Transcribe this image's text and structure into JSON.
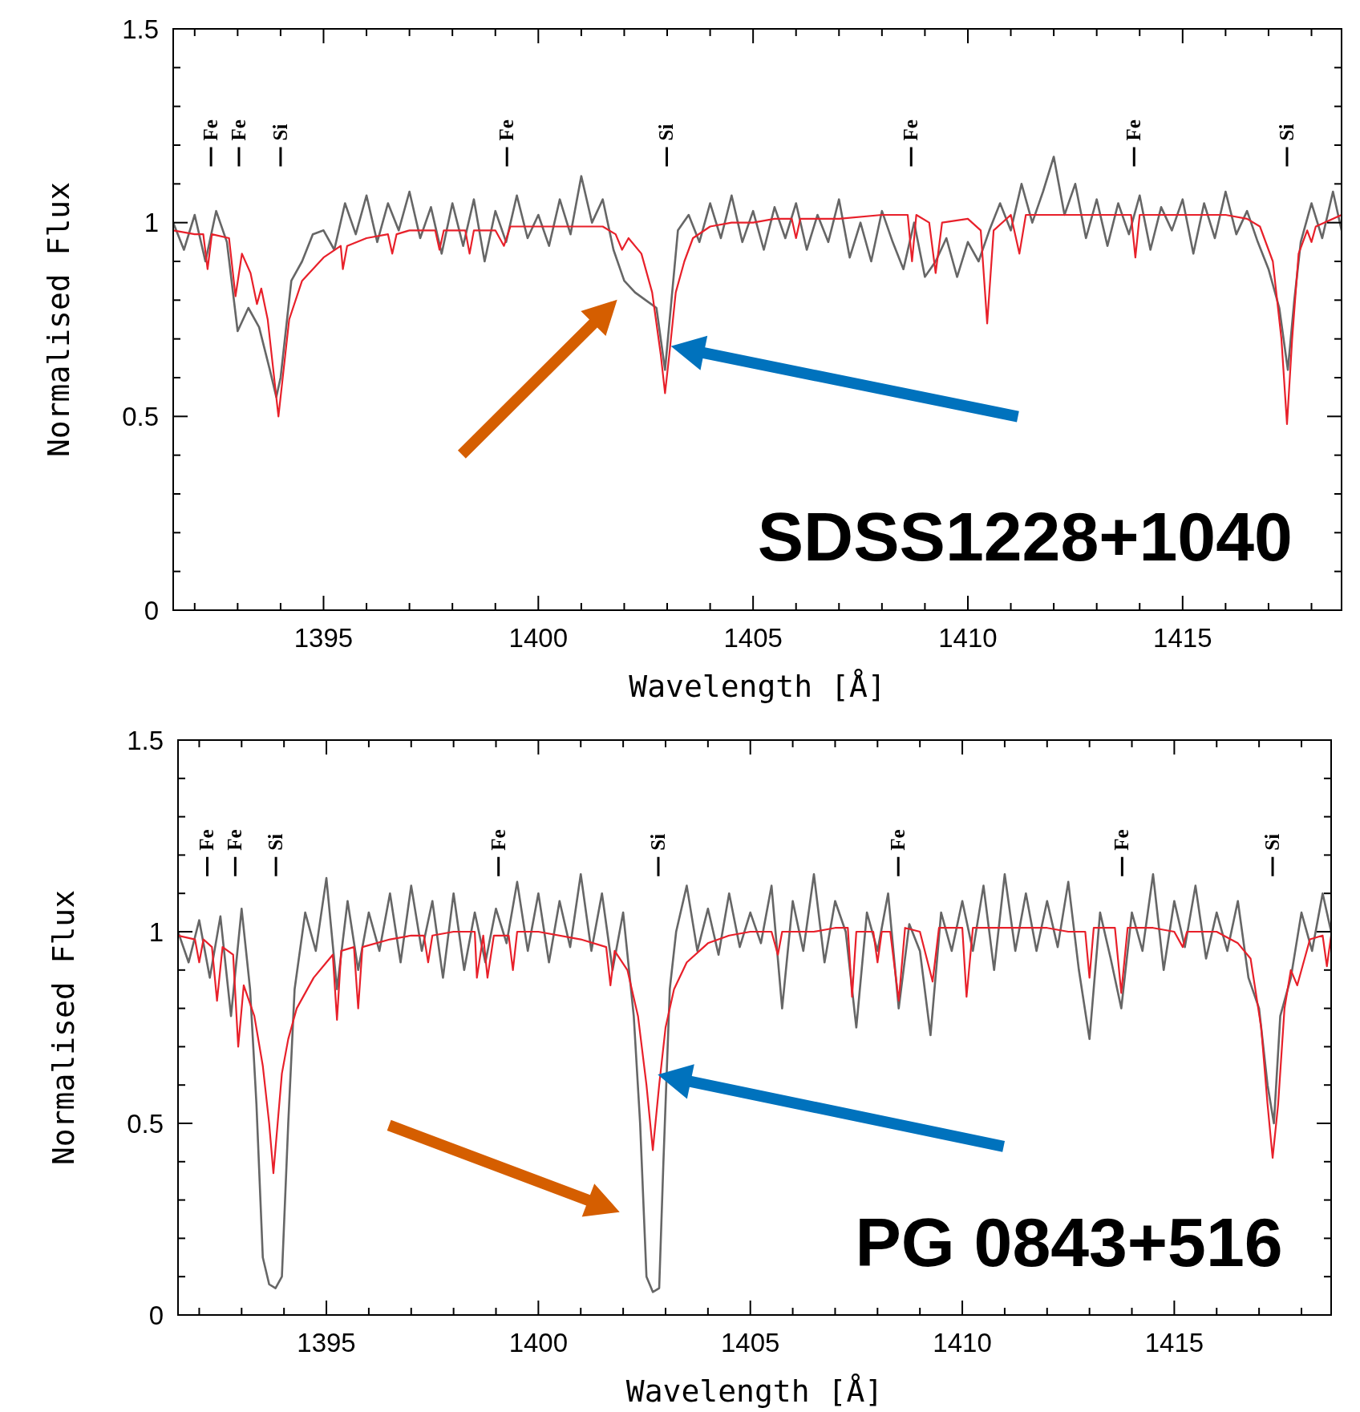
{
  "chart_data": [
    {
      "type": "line",
      "title": "SDSS1228+1040",
      "xlabel": "Wavelength [Å]",
      "ylabel": "Normalised Flux",
      "xlim": [
        1391.5,
        1418.7
      ],
      "ylim": [
        0,
        1.5
      ],
      "xticks": [
        {
          "value": 1392,
          "label": null
        },
        {
          "value": 1393,
          "label": null
        },
        {
          "value": 1394,
          "label": null
        },
        1395,
        {
          "value": 1396,
          "label": null
        },
        {
          "value": 1397,
          "label": null
        },
        {
          "value": 1398,
          "label": null
        },
        {
          "value": 1399,
          "label": null
        },
        1400,
        {
          "value": 1401,
          "label": null
        },
        {
          "value": 1402,
          "label": null
        },
        {
          "value": 1403,
          "label": null
        },
        {
          "value": 1404,
          "label": null
        },
        1405,
        {
          "value": 1406,
          "label": null
        },
        {
          "value": 1407,
          "label": null
        },
        {
          "value": 1408,
          "label": null
        },
        {
          "value": 1409,
          "label": null
        },
        1410,
        {
          "value": 1411,
          "label": null
        },
        {
          "value": 1412,
          "label": null
        },
        {
          "value": 1413,
          "label": null
        },
        {
          "value": 1414,
          "label": null
        },
        1415,
        {
          "value": 1416,
          "label": null
        },
        {
          "value": 1417,
          "label": null
        },
        {
          "value": 1418,
          "label": null
        }
      ],
      "yticks": [
        0,
        {
          "value": 0.1,
          "label": null
        },
        {
          "value": 0.2,
          "label": null
        },
        {
          "value": 0.3,
          "label": null
        },
        {
          "value": 0.4,
          "label": null
        },
        0.5,
        {
          "value": 0.6,
          "label": null
        },
        {
          "value": 0.7,
          "label": null
        },
        {
          "value": 0.8,
          "label": null
        },
        {
          "value": 0.9,
          "label": null
        },
        1,
        {
          "value": 1.1,
          "label": null
        },
        {
          "value": 1.2,
          "label": null
        },
        {
          "value": 1.3,
          "label": null
        },
        {
          "value": 1.4,
          "label": null
        },
        1.5
      ],
      "grid": false,
      "line_style": "solid",
      "marker": "none",
      "ref_lines": [
        {
          "axis": "x",
          "value": 1392.38,
          "label": "Fe"
        },
        {
          "axis": "x",
          "value": 1393.03,
          "label": "Fe"
        },
        {
          "axis": "x",
          "value": 1394.0,
          "label": "Si"
        },
        {
          "axis": "x",
          "value": 1399.27,
          "label": "Fe"
        },
        {
          "axis": "x",
          "value": 1402.99,
          "label": "Si"
        },
        {
          "axis": "x",
          "value": 1408.68,
          "label": "Fe"
        },
        {
          "axis": "x",
          "value": 1413.87,
          "label": "Fe"
        },
        {
          "axis": "x",
          "value": 1417.43,
          "label": "Si"
        }
      ],
      "series": [
        {
          "color": "#666666",
          "x": [
            1391.5,
            1391.75,
            1392,
            1392.25,
            1392.5,
            1392.75,
            1393,
            1393.25,
            1393.5,
            1393.75,
            1393.9,
            1394,
            1394.25,
            1394.5,
            1394.75,
            1395,
            1395.25,
            1395.5,
            1395.75,
            1396,
            1396.25,
            1396.5,
            1396.75,
            1397,
            1397.25,
            1397.5,
            1397.75,
            1398,
            1398.25,
            1398.5,
            1398.75,
            1399,
            1399.25,
            1399.5,
            1399.75,
            1400,
            1400.25,
            1400.5,
            1400.75,
            1401,
            1401.25,
            1401.5,
            1401.75,
            1402,
            1402.25,
            1402.5,
            1402.75,
            1402.95,
            1403.1,
            1403.25,
            1403.5,
            1403.75,
            1404,
            1404.25,
            1404.5,
            1404.75,
            1405,
            1405.25,
            1405.5,
            1405.75,
            1406,
            1406.25,
            1406.5,
            1406.75,
            1407,
            1407.25,
            1407.5,
            1407.75,
            1408,
            1408.25,
            1408.5,
            1408.75,
            1409,
            1409.25,
            1409.5,
            1409.75,
            1410,
            1410.25,
            1410.5,
            1410.75,
            1411,
            1411.25,
            1411.5,
            1411.75,
            1412,
            1412.25,
            1412.5,
            1412.75,
            1413,
            1413.25,
            1413.5,
            1413.75,
            1414,
            1414.25,
            1414.5,
            1414.75,
            1415,
            1415.25,
            1415.5,
            1415.75,
            1416,
            1416.25,
            1416.5,
            1416.75,
            1417,
            1417.25,
            1417.45,
            1417.6,
            1417.75,
            1418,
            1418.25,
            1418.5,
            1418.7
          ],
          "values": [
            1.0,
            0.93,
            1.02,
            0.9,
            1.03,
            0.95,
            0.72,
            0.78,
            0.73,
            0.62,
            0.55,
            0.6,
            0.85,
            0.9,
            0.97,
            0.98,
            0.93,
            1.05,
            0.97,
            1.07,
            0.95,
            1.05,
            0.98,
            1.08,
            0.96,
            1.04,
            0.92,
            1.05,
            0.94,
            1.06,
            0.9,
            1.03,
            0.95,
            1.07,
            0.96,
            1.02,
            0.94,
            1.06,
            0.97,
            1.12,
            1.0,
            1.06,
            0.93,
            0.85,
            0.82,
            0.8,
            0.78,
            0.62,
            0.8,
            0.98,
            1.02,
            0.95,
            1.05,
            0.96,
            1.07,
            0.95,
            1.03,
            0.93,
            1.04,
            0.96,
            1.05,
            0.93,
            1.02,
            0.95,
            1.06,
            0.91,
            1.0,
            0.9,
            1.03,
            0.95,
            0.88,
            1.0,
            0.86,
            0.9,
            0.96,
            0.86,
            0.95,
            0.9,
            0.98,
            1.05,
            0.98,
            1.1,
            1.0,
            1.08,
            1.17,
            1.02,
            1.1,
            0.96,
            1.06,
            0.94,
            1.05,
            0.97,
            1.07,
            0.93,
            1.04,
            0.98,
            1.06,
            0.92,
            1.05,
            0.96,
            1.08,
            0.97,
            1.03,
            0.95,
            0.88,
            0.78,
            0.62,
            0.8,
            0.95,
            1.05,
            0.96,
            1.08,
            0.98
          ]
        },
        {
          "color": "#e8202a",
          "x": [
            1391.5,
            1392.0,
            1392.2,
            1392.3,
            1392.4,
            1392.8,
            1392.95,
            1393.1,
            1393.3,
            1393.45,
            1393.55,
            1393.7,
            1393.85,
            1393.95,
            1394.05,
            1394.2,
            1394.5,
            1395,
            1395.4,
            1395.45,
            1395.55,
            1396,
            1396.5,
            1396.6,
            1396.7,
            1397,
            1397.6,
            1397.7,
            1397.8,
            1398.3,
            1398.4,
            1398.5,
            1399.0,
            1399.2,
            1399.35,
            1400.0,
            1401.0,
            1401.5,
            1401.8,
            1401.95,
            1402.1,
            1402.4,
            1402.65,
            1402.85,
            1402.95,
            1403.05,
            1403.2,
            1403.4,
            1403.6,
            1404,
            1404.5,
            1405,
            1405.5,
            1405.9,
            1406.0,
            1406.1,
            1407,
            1408,
            1408.6,
            1408.7,
            1408.8,
            1409.1,
            1409.25,
            1409.4,
            1410,
            1410.3,
            1410.45,
            1410.6,
            1411,
            1411.2,
            1411.35,
            1412,
            1413,
            1413.8,
            1413.9,
            1414.0,
            1415,
            1416,
            1416.5,
            1416.8,
            1417.1,
            1417.3,
            1417.43,
            1417.55,
            1417.7,
            1417.9,
            1418.0,
            1418.1,
            1418.7
          ],
          "values": [
            0.98,
            0.97,
            0.97,
            0.88,
            0.97,
            0.96,
            0.81,
            0.92,
            0.87,
            0.79,
            0.83,
            0.75,
            0.6,
            0.5,
            0.6,
            0.75,
            0.85,
            0.91,
            0.94,
            0.88,
            0.94,
            0.96,
            0.97,
            0.92,
            0.97,
            0.98,
            0.98,
            0.93,
            0.98,
            0.98,
            0.92,
            0.98,
            0.98,
            0.94,
            0.99,
            0.99,
            0.99,
            0.99,
            0.97,
            0.93,
            0.96,
            0.92,
            0.82,
            0.66,
            0.56,
            0.66,
            0.82,
            0.9,
            0.96,
            0.99,
            1.0,
            1.0,
            1.01,
            1.01,
            0.96,
            1.01,
            1.01,
            1.02,
            1.02,
            0.9,
            1.02,
            1.0,
            0.87,
            1.0,
            1.01,
            0.98,
            0.74,
            0.98,
            1.02,
            0.92,
            1.02,
            1.02,
            1.02,
            1.02,
            0.91,
            1.02,
            1.02,
            1.02,
            1.01,
            0.99,
            0.9,
            0.7,
            0.48,
            0.7,
            0.92,
            0.98,
            0.95,
            0.99,
            1.02
          ]
        }
      ]
    },
    {
      "type": "line",
      "title": "PG 0843+516",
      "xlabel": "Wavelength [Å]",
      "ylabel": "Normalised Flux",
      "xlim": [
        1391.5,
        1418.7
      ],
      "ylim": [
        0,
        1.5
      ],
      "xticks": [
        {
          "value": 1392,
          "label": null
        },
        {
          "value": 1393,
          "label": null
        },
        {
          "value": 1394,
          "label": null
        },
        1395,
        {
          "value": 1396,
          "label": null
        },
        {
          "value": 1397,
          "label": null
        },
        {
          "value": 1398,
          "label": null
        },
        {
          "value": 1399,
          "label": null
        },
        1400,
        {
          "value": 1401,
          "label": null
        },
        {
          "value": 1402,
          "label": null
        },
        {
          "value": 1403,
          "label": null
        },
        {
          "value": 1404,
          "label": null
        },
        1405,
        {
          "value": 1406,
          "label": null
        },
        {
          "value": 1407,
          "label": null
        },
        {
          "value": 1408,
          "label": null
        },
        {
          "value": 1409,
          "label": null
        },
        1410,
        {
          "value": 1411,
          "label": null
        },
        {
          "value": 1412,
          "label": null
        },
        {
          "value": 1413,
          "label": null
        },
        {
          "value": 1414,
          "label": null
        },
        1415,
        {
          "value": 1416,
          "label": null
        },
        {
          "value": 1417,
          "label": null
        },
        {
          "value": 1418,
          "label": null
        }
      ],
      "yticks": [
        0,
        {
          "value": 0.1,
          "label": null
        },
        {
          "value": 0.2,
          "label": null
        },
        {
          "value": 0.3,
          "label": null
        },
        {
          "value": 0.4,
          "label": null
        },
        0.5,
        {
          "value": 0.6,
          "label": null
        },
        {
          "value": 0.7,
          "label": null
        },
        {
          "value": 0.8,
          "label": null
        },
        {
          "value": 0.9,
          "label": null
        },
        1,
        {
          "value": 1.1,
          "label": null
        },
        {
          "value": 1.2,
          "label": null
        },
        {
          "value": 1.3,
          "label": null
        },
        {
          "value": 1.4,
          "label": null
        },
        1.5
      ],
      "grid": false,
      "line_style": "solid",
      "marker": "none",
      "ref_lines": [
        {
          "axis": "x",
          "value": 1392.19,
          "label": "Fe"
        },
        {
          "axis": "x",
          "value": 1392.85,
          "label": "Fe"
        },
        {
          "axis": "x",
          "value": 1393.81,
          "label": "Si"
        },
        {
          "axis": "x",
          "value": 1399.06,
          "label": "Fe"
        },
        {
          "axis": "x",
          "value": 1402.83,
          "label": "Si"
        },
        {
          "axis": "x",
          "value": 1408.49,
          "label": "Fe"
        },
        {
          "axis": "x",
          "value": 1413.77,
          "label": "Fe"
        },
        {
          "axis": "x",
          "value": 1417.32,
          "label": "Si"
        }
      ],
      "series": [
        {
          "color": "#666666",
          "x": [
            1391.5,
            1391.75,
            1392,
            1392.25,
            1392.5,
            1392.75,
            1393,
            1393.2,
            1393.35,
            1393.5,
            1393.65,
            1393.8,
            1393.95,
            1394.1,
            1394.25,
            1394.5,
            1394.75,
            1395,
            1395.25,
            1395.5,
            1395.75,
            1396,
            1396.25,
            1396.5,
            1396.75,
            1397,
            1397.25,
            1397.5,
            1397.75,
            1398,
            1398.25,
            1398.5,
            1398.75,
            1399,
            1399.25,
            1399.5,
            1399.75,
            1400,
            1400.25,
            1400.5,
            1400.75,
            1401,
            1401.25,
            1401.5,
            1401.75,
            1402,
            1402.25,
            1402.4,
            1402.55,
            1402.7,
            1402.85,
            1402.95,
            1403.1,
            1403.25,
            1403.5,
            1403.75,
            1404,
            1404.25,
            1404.5,
            1404.75,
            1405,
            1405.25,
            1405.5,
            1405.75,
            1406,
            1406.25,
            1406.5,
            1406.75,
            1407,
            1407.25,
            1407.5,
            1407.75,
            1408,
            1408.25,
            1408.5,
            1408.75,
            1409,
            1409.25,
            1409.5,
            1409.75,
            1410,
            1410.25,
            1410.5,
            1410.75,
            1411,
            1411.25,
            1411.5,
            1411.75,
            1412,
            1412.25,
            1412.5,
            1412.75,
            1413,
            1413.25,
            1413.5,
            1413.75,
            1414,
            1414.25,
            1414.5,
            1414.75,
            1415,
            1415.25,
            1415.5,
            1415.75,
            1416,
            1416.25,
            1416.5,
            1416.75,
            1417,
            1417.2,
            1417.35,
            1417.5,
            1417.75,
            1418,
            1418.25,
            1418.5,
            1418.7
          ],
          "values": [
            1.0,
            0.92,
            1.03,
            0.88,
            1.04,
            0.78,
            1.06,
            0.85,
            0.55,
            0.15,
            0.08,
            0.07,
            0.1,
            0.5,
            0.85,
            1.05,
            0.95,
            1.14,
            0.85,
            1.08,
            0.9,
            1.05,
            0.95,
            1.1,
            0.92,
            1.12,
            0.95,
            1.08,
            0.88,
            1.1,
            0.9,
            1.05,
            0.92,
            1.06,
            0.97,
            1.13,
            0.95,
            1.1,
            0.92,
            1.08,
            0.96,
            1.15,
            0.95,
            1.1,
            0.9,
            1.05,
            0.78,
            0.5,
            0.1,
            0.06,
            0.07,
            0.4,
            0.85,
            1.0,
            1.12,
            0.95,
            1.06,
            0.94,
            1.1,
            0.96,
            1.05,
            0.97,
            1.12,
            0.8,
            1.08,
            0.95,
            1.15,
            0.92,
            1.08,
            1.0,
            0.75,
            1.05,
            0.95,
            1.1,
            0.8,
            1.02,
            0.95,
            0.73,
            1.05,
            0.95,
            1.08,
            0.95,
            1.12,
            0.9,
            1.15,
            0.95,
            1.1,
            0.95,
            1.08,
            0.96,
            1.13,
            0.9,
            0.72,
            1.05,
            0.93,
            0.8,
            1.05,
            0.95,
            1.15,
            0.9,
            1.08,
            0.96,
            1.12,
            0.93,
            1.05,
            0.95,
            1.08,
            0.88,
            0.8,
            0.6,
            0.5,
            0.78,
            0.88,
            1.05,
            0.95,
            1.1,
            1.0
          ]
        },
        {
          "color": "#e8202a",
          "x": [
            1391.5,
            1391.9,
            1392.0,
            1392.1,
            1392.3,
            1392.42,
            1392.55,
            1392.8,
            1392.92,
            1393.05,
            1393.3,
            1393.5,
            1393.65,
            1393.75,
            1393.85,
            1393.95,
            1394.1,
            1394.3,
            1394.7,
            1395.0,
            1395.15,
            1395.25,
            1395.35,
            1395.65,
            1395.75,
            1395.85,
            1396.5,
            1397,
            1397.3,
            1397.4,
            1397.5,
            1398.0,
            1398.5,
            1398.55,
            1398.7,
            1398.8,
            1398.95,
            1399.3,
            1399.4,
            1399.5,
            1400,
            1401,
            1401.6,
            1401.7,
            1401.8,
            1402.1,
            1402.35,
            1402.55,
            1402.7,
            1402.85,
            1403.0,
            1403.2,
            1403.5,
            1404,
            1404.5,
            1405,
            1405.5,
            1405.65,
            1405.75,
            1406.5,
            1407,
            1407.3,
            1407.4,
            1407.5,
            1407.9,
            1408.0,
            1408.1,
            1408.3,
            1408.5,
            1408.65,
            1409.0,
            1409.3,
            1409.45,
            1410,
            1410.1,
            1410.25,
            1411,
            1411.5,
            1412,
            1412.5,
            1412.9,
            1413.0,
            1413.1,
            1413.6,
            1413.75,
            1413.9,
            1414.5,
            1415.0,
            1415.2,
            1415.3,
            1416.0,
            1416.5,
            1416.8,
            1417.05,
            1417.2,
            1417.32,
            1417.45,
            1417.6,
            1417.75,
            1417.9,
            1418.0,
            1418.2,
            1418.5,
            1418.6,
            1418.7
          ],
          "values": [
            0.99,
            0.98,
            0.92,
            0.98,
            0.96,
            0.82,
            0.96,
            0.94,
            0.7,
            0.86,
            0.78,
            0.65,
            0.5,
            0.37,
            0.5,
            0.63,
            0.72,
            0.8,
            0.88,
            0.92,
            0.94,
            0.77,
            0.95,
            0.96,
            0.8,
            0.96,
            0.98,
            0.99,
            0.99,
            0.92,
            0.99,
            1.0,
            1.0,
            0.88,
            0.99,
            0.88,
            0.99,
            0.99,
            0.9,
            1.0,
            1.0,
            0.98,
            0.96,
            0.86,
            0.95,
            0.9,
            0.78,
            0.6,
            0.43,
            0.6,
            0.75,
            0.85,
            0.92,
            0.97,
            0.99,
            1.0,
            1.0,
            0.94,
            1.0,
            1.0,
            1.01,
            1.01,
            0.83,
            1.0,
            1.0,
            0.92,
            1.0,
            1.0,
            0.82,
            1.01,
            1.0,
            0.87,
            1.01,
            1.01,
            0.83,
            1.01,
            1.01,
            1.01,
            1.01,
            1.0,
            1.0,
            0.88,
            1.01,
            1.01,
            0.84,
            1.01,
            1.01,
            1.0,
            0.96,
            1.0,
            1.0,
            0.97,
            0.93,
            0.75,
            0.55,
            0.41,
            0.55,
            0.8,
            0.9,
            0.86,
            0.9,
            0.98,
            0.99,
            0.91,
            0.99
          ]
        }
      ]
    }
  ]
}
